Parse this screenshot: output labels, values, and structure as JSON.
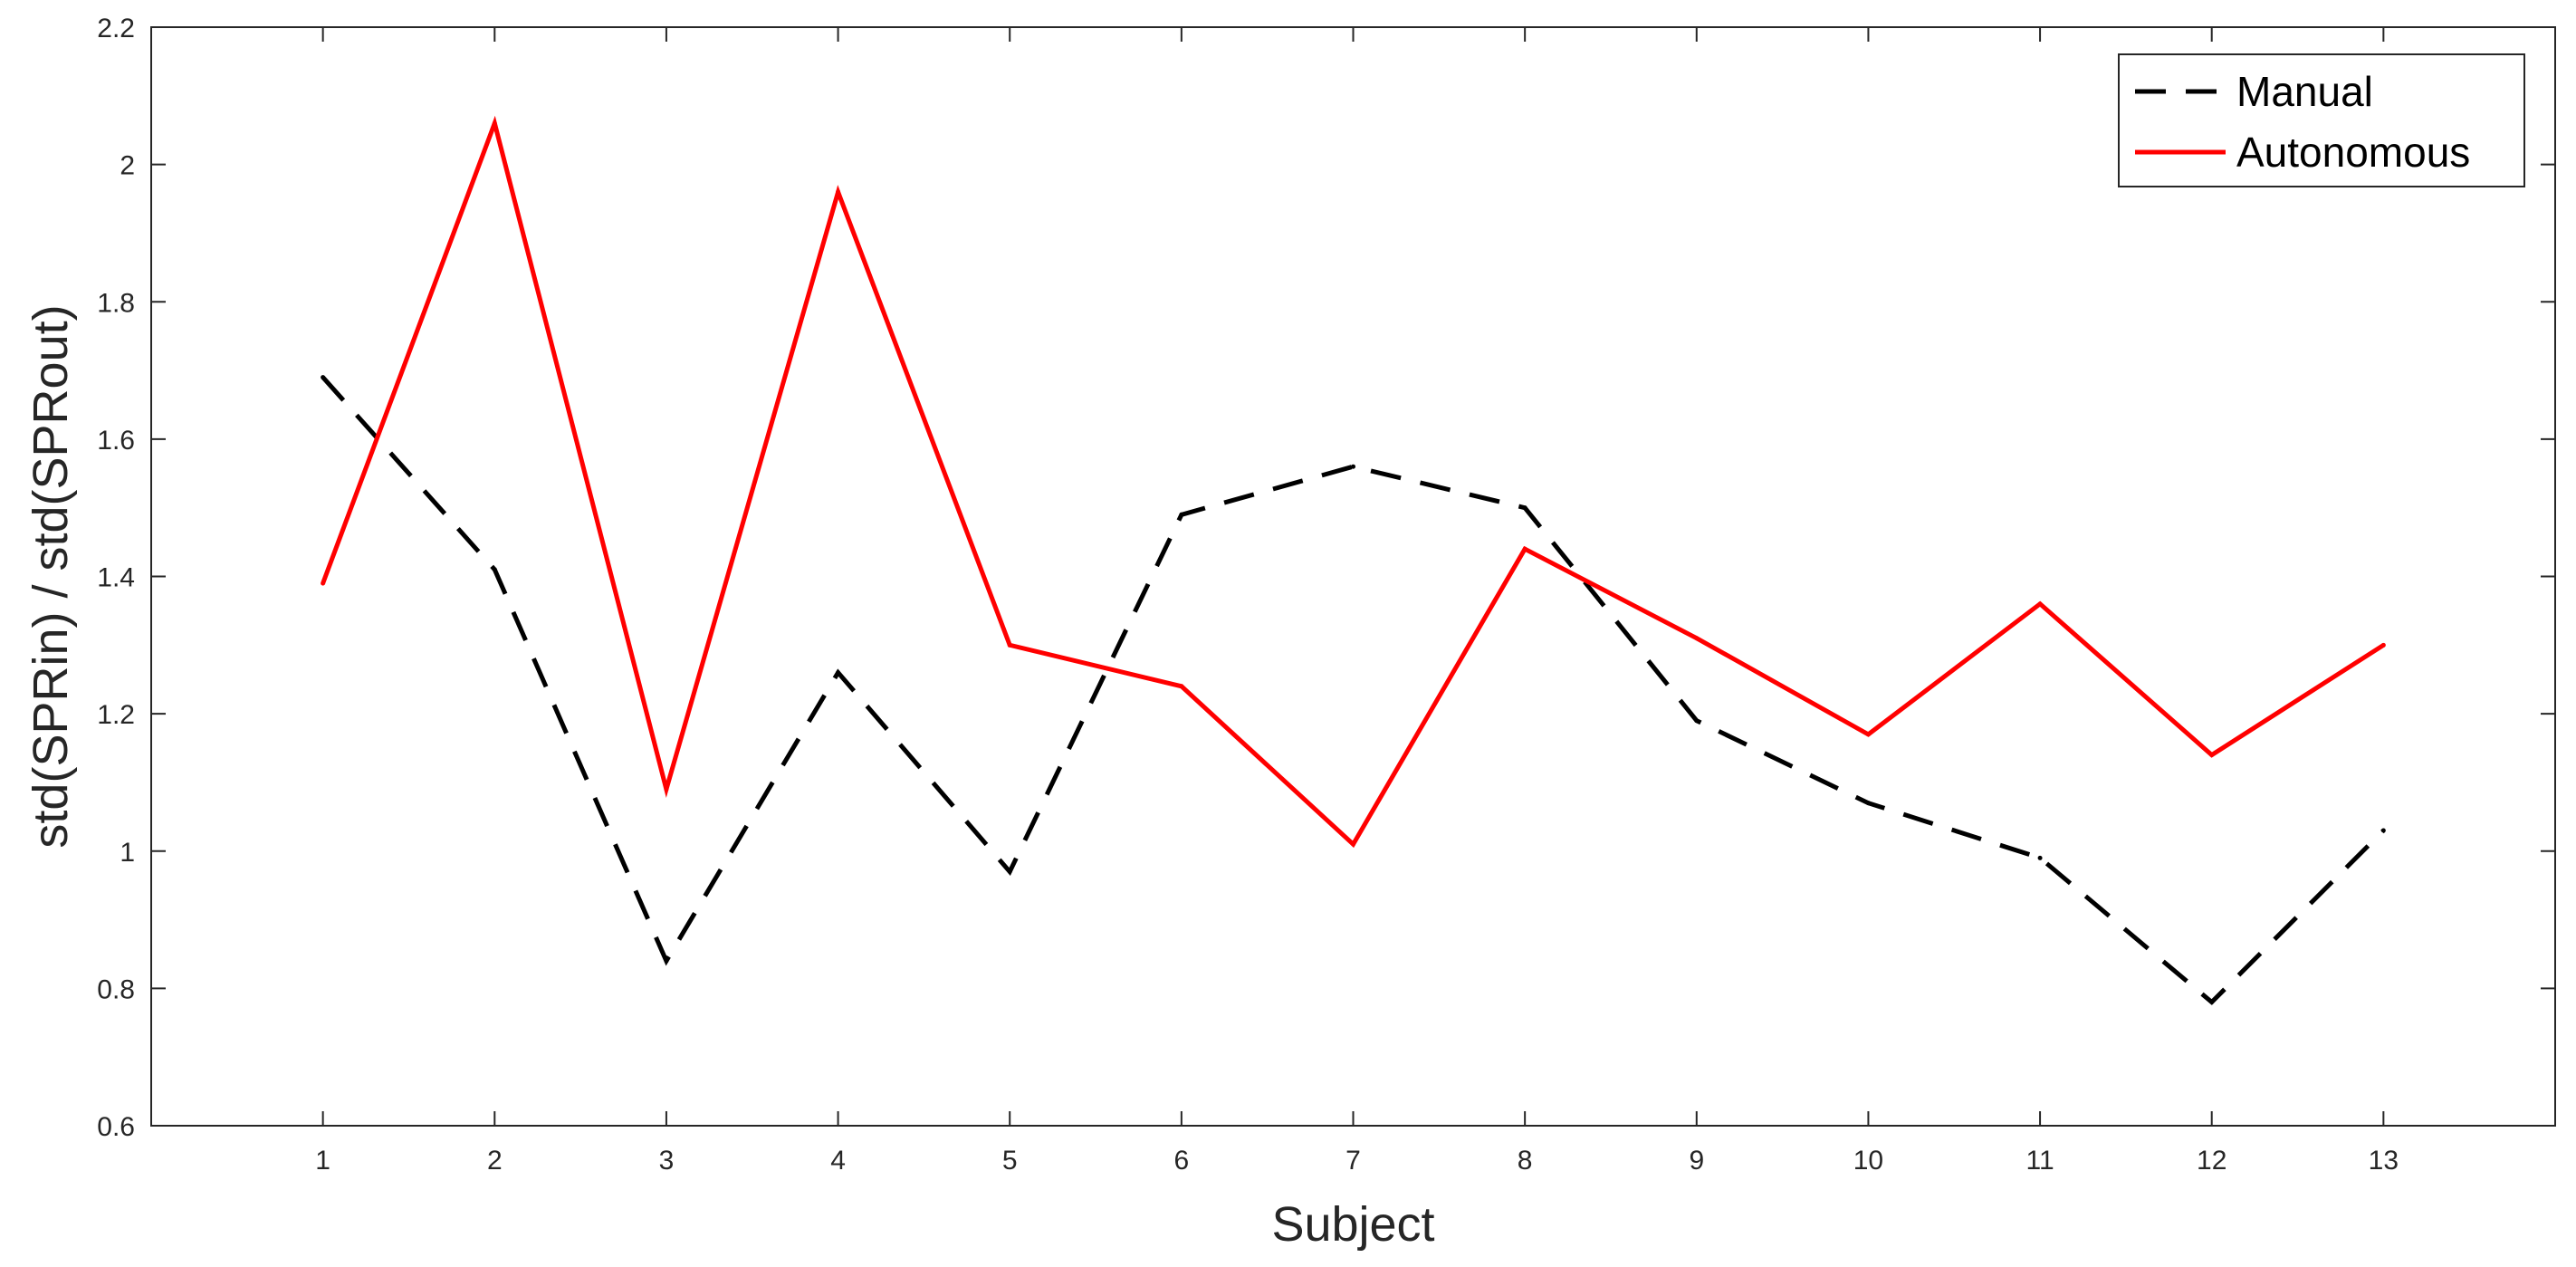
{
  "chart_data": {
    "type": "line",
    "xlabel": "Subject",
    "ylabel": "std(SPRin) / std(SPRout)",
    "x": [
      1,
      2,
      3,
      4,
      5,
      6,
      7,
      8,
      9,
      10,
      11,
      12,
      13
    ],
    "xlim": [
      0,
      14
    ],
    "ylim": [
      0.6,
      2.2
    ],
    "xticks": [
      1,
      2,
      3,
      4,
      5,
      6,
      7,
      8,
      9,
      10,
      11,
      12,
      13
    ],
    "yticks": [
      0.6,
      0.8,
      1,
      1.2,
      1.4,
      1.6,
      1.8,
      2,
      2.2
    ],
    "ytick_labels": [
      "0.6",
      "0.8",
      "1",
      "1.2",
      "1.4",
      "1.6",
      "1.8",
      "2",
      "2.2"
    ],
    "grid": false,
    "legend_position": "top-right",
    "series": [
      {
        "name": "Manual",
        "color": "#000000",
        "line_style": "dashed",
        "values": [
          1.69,
          1.41,
          0.84,
          1.26,
          0.97,
          1.49,
          1.56,
          1.5,
          1.19,
          1.07,
          0.99,
          0.78,
          1.03
        ]
      },
      {
        "name": "Autonomous",
        "color": "#ff0000",
        "line_style": "solid",
        "values": [
          1.39,
          2.06,
          1.09,
          1.96,
          1.3,
          1.24,
          1.01,
          1.44,
          1.31,
          1.17,
          1.36,
          1.14,
          1.3
        ]
      }
    ]
  }
}
